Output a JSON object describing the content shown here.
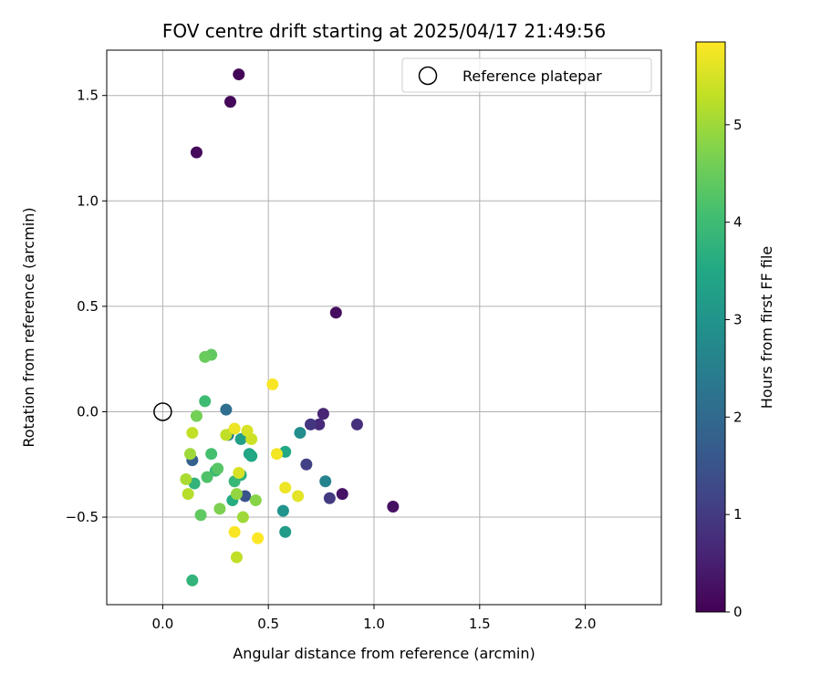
{
  "chart_data": {
    "type": "scatter",
    "title": "FOV centre drift starting at 2025/04/17 21:49:56",
    "xlabel": "Angular distance from reference (arcmin)",
    "ylabel": "Rotation from reference (arcmin)",
    "xlim": [
      -0.265,
      2.36
    ],
    "ylim": [
      -0.915,
      1.715
    ],
    "xticks": [
      0.0,
      0.5,
      1.0,
      1.5,
      2.0
    ],
    "xtick_labels": [
      "0.0",
      "0.5",
      "1.0",
      "1.5",
      "2.0"
    ],
    "yticks": [
      -0.5,
      0.0,
      0.5,
      1.0,
      1.5
    ],
    "ytick_labels": [
      "−0.5",
      "0.0",
      "0.5",
      "1.0",
      "1.5"
    ],
    "grid": true,
    "legend": {
      "position": "top-right",
      "entries": [
        "Reference platepar"
      ]
    },
    "reference": {
      "x": 0.0,
      "y": 0.0
    },
    "colorbar": {
      "label": "Hours from first FF file",
      "range": [
        0,
        5.85
      ],
      "ticks": [
        0,
        1,
        2,
        3,
        4,
        5
      ],
      "tick_labels": [
        "0",
        "1",
        "2",
        "3",
        "4",
        "5"
      ],
      "colormap": "viridis"
    },
    "points": [
      {
        "x": 0.36,
        "y": 1.6,
        "c": 0.05
      },
      {
        "x": 0.32,
        "y": 1.47,
        "c": 0.1
      },
      {
        "x": 0.16,
        "y": 1.23,
        "c": 0.15
      },
      {
        "x": 0.82,
        "y": 0.47,
        "c": 0.2
      },
      {
        "x": 1.09,
        "y": -0.45,
        "c": 0.25
      },
      {
        "x": 0.85,
        "y": -0.39,
        "c": 0.3
      },
      {
        "x": 0.76,
        "y": -0.01,
        "c": 0.6
      },
      {
        "x": 0.74,
        "y": -0.06,
        "c": 0.7
      },
      {
        "x": 0.92,
        "y": -0.06,
        "c": 0.8
      },
      {
        "x": 0.7,
        "y": -0.06,
        "c": 0.9
      },
      {
        "x": 0.79,
        "y": -0.41,
        "c": 1.0
      },
      {
        "x": 0.68,
        "y": -0.25,
        "c": 1.1
      },
      {
        "x": 0.39,
        "y": -0.4,
        "c": 1.5
      },
      {
        "x": 0.14,
        "y": -0.23,
        "c": 1.8
      },
      {
        "x": 0.3,
        "y": 0.01,
        "c": 2.1
      },
      {
        "x": 0.31,
        "y": -0.11,
        "c": 2.4
      },
      {
        "x": 0.77,
        "y": -0.33,
        "c": 2.6
      },
      {
        "x": 0.65,
        "y": -0.1,
        "c": 2.8
      },
      {
        "x": 0.57,
        "y": -0.47,
        "c": 3.0
      },
      {
        "x": 0.58,
        "y": -0.57,
        "c": 3.2
      },
      {
        "x": 0.37,
        "y": -0.13,
        "c": 3.3
      },
      {
        "x": 0.41,
        "y": -0.2,
        "c": 3.4
      },
      {
        "x": 0.42,
        "y": -0.21,
        "c": 3.5
      },
      {
        "x": 0.58,
        "y": -0.19,
        "c": 3.5
      },
      {
        "x": 0.33,
        "y": -0.42,
        "c": 3.6
      },
      {
        "x": 0.37,
        "y": -0.3,
        "c": 3.7
      },
      {
        "x": 0.15,
        "y": -0.34,
        "c": 3.8
      },
      {
        "x": 0.14,
        "y": -0.8,
        "c": 3.8
      },
      {
        "x": 0.34,
        "y": -0.33,
        "c": 3.9
      },
      {
        "x": 0.25,
        "y": -0.28,
        "c": 3.9
      },
      {
        "x": 0.2,
        "y": 0.05,
        "c": 4.0
      },
      {
        "x": 0.23,
        "y": -0.2,
        "c": 4.1
      },
      {
        "x": 0.21,
        "y": -0.31,
        "c": 4.2
      },
      {
        "x": 0.26,
        "y": -0.27,
        "c": 4.3
      },
      {
        "x": 0.18,
        "y": -0.49,
        "c": 4.4
      },
      {
        "x": 0.23,
        "y": 0.27,
        "c": 4.4
      },
      {
        "x": 0.2,
        "y": 0.26,
        "c": 4.5
      },
      {
        "x": 0.16,
        "y": -0.02,
        "c": 4.6
      },
      {
        "x": 0.27,
        "y": -0.46,
        "c": 4.7
      },
      {
        "x": 0.44,
        "y": -0.42,
        "c": 4.8
      },
      {
        "x": 0.35,
        "y": -0.39,
        "c": 4.9
      },
      {
        "x": 0.38,
        "y": -0.5,
        "c": 5.0
      },
      {
        "x": 0.13,
        "y": -0.2,
        "c": 5.0
      },
      {
        "x": 0.11,
        "y": -0.32,
        "c": 5.1
      },
      {
        "x": 0.12,
        "y": -0.39,
        "c": 5.2
      },
      {
        "x": 0.14,
        "y": -0.1,
        "c": 5.3
      },
      {
        "x": 0.3,
        "y": -0.11,
        "c": 5.3
      },
      {
        "x": 0.35,
        "y": -0.69,
        "c": 5.3
      },
      {
        "x": 0.42,
        "y": -0.13,
        "c": 5.4
      },
      {
        "x": 0.4,
        "y": -0.09,
        "c": 5.5
      },
      {
        "x": 0.36,
        "y": -0.29,
        "c": 5.5
      },
      {
        "x": 0.64,
        "y": -0.4,
        "c": 5.6
      },
      {
        "x": 0.58,
        "y": -0.36,
        "c": 5.7
      },
      {
        "x": 0.34,
        "y": -0.08,
        "c": 5.7
      },
      {
        "x": 0.54,
        "y": -0.2,
        "c": 5.75
      },
      {
        "x": 0.52,
        "y": 0.13,
        "c": 5.8
      },
      {
        "x": 0.34,
        "y": -0.57,
        "c": 5.8
      },
      {
        "x": 0.45,
        "y": -0.6,
        "c": 5.85
      }
    ]
  }
}
